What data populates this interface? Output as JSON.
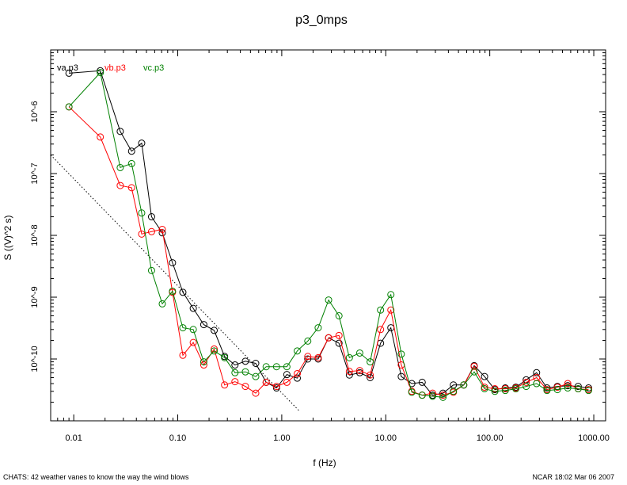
{
  "chart_data": {
    "type": "line",
    "title": "p3_0mps",
    "xlabel": "f (Hz)",
    "ylabel": "S ((V)^2 s)",
    "xscale": "log",
    "yscale": "log",
    "xlim": [
      0.006,
      1300
    ],
    "ylim": [
      1e-11,
      1e-05
    ],
    "x_tick_labels": [
      "0.01",
      "0.10",
      "1.00",
      "10.00",
      "100.00",
      "1000.00"
    ],
    "x_tick_values": [
      0.01,
      0.1,
      1,
      10,
      100,
      1000
    ],
    "y_tick_labels": [
      "10^-10",
      "10^-9",
      "10^-8",
      "10^-7",
      "10^-6"
    ],
    "y_tick_values": [
      1e-10,
      1e-09,
      1e-08,
      1e-07,
      1e-06
    ],
    "legend_position": "top-left",
    "x": [
      0.009,
      0.018,
      0.028,
      0.036,
      0.045,
      0.056,
      0.071,
      0.089,
      0.112,
      0.141,
      0.178,
      0.224,
      0.282,
      0.355,
      0.447,
      0.562,
      0.708,
      0.891,
      1.12,
      1.41,
      1.78,
      2.24,
      2.82,
      3.55,
      4.47,
      5.62,
      7.08,
      8.91,
      11.2,
      14.1,
      17.8,
      22.4,
      28.2,
      35.5,
      44.7,
      56.2,
      70.8,
      89.1,
      112,
      141,
      178,
      224,
      282,
      355,
      447,
      562,
      708,
      891
    ],
    "series": [
      {
        "name": "va.p3",
        "color": "#000000",
        "values": [
          4.2e-06,
          4.6e-06,
          4.8e-07,
          2.3e-07,
          3.1e-07,
          2e-08,
          1.1e-08,
          3.6e-09,
          1.2e-09,
          6.6e-10,
          3.6e-10,
          2.9e-10,
          1.1e-10,
          8e-11,
          9.2e-11,
          8.5e-11,
          4.2e-11,
          3.4e-11,
          5.6e-11,
          4.9e-11,
          1e-10,
          1e-10,
          2.2e-10,
          1.8e-10,
          5.5e-11,
          6e-11,
          5e-11,
          1.8e-10,
          3.2e-10,
          5.2e-11,
          4e-11,
          4.2e-11,
          2.6e-11,
          2.8e-11,
          3.8e-11,
          3.8e-11,
          7.8e-11,
          5.2e-11,
          3.2e-11,
          3.4e-11,
          3.5e-11,
          4.6e-11,
          6e-11,
          3.4e-11,
          3.6e-11,
          3.7e-11,
          3.6e-11,
          3.4e-11
        ]
      },
      {
        "name": "vb.p3",
        "color": "#ff0000",
        "values": [
          1.2e-06,
          3.9e-07,
          6.4e-08,
          5.9e-08,
          1.05e-08,
          1.15e-08,
          1.25e-08,
          1.2e-09,
          1.15e-10,
          1.85e-10,
          8e-11,
          1.45e-10,
          3.8e-11,
          4.3e-11,
          3.6e-11,
          2.8e-11,
          4.2e-11,
          3.6e-11,
          4.2e-11,
          5.8e-11,
          1.1e-10,
          1.05e-10,
          2.2e-10,
          2.4e-10,
          6.3e-11,
          6.5e-11,
          5.5e-11,
          3e-10,
          6.2e-10,
          8e-11,
          3e-11,
          2.6e-11,
          2.8e-11,
          2.6e-11,
          2.9e-11,
          3.8e-11,
          7.6e-11,
          3.5e-11,
          3.3e-11,
          3.3e-11,
          3.4e-11,
          4.2e-11,
          5e-11,
          3.2e-11,
          3.5e-11,
          4e-11,
          3.3e-11,
          3.2e-11
        ]
      },
      {
        "name": "vc.p3",
        "color": "#008000",
        "values": [
          1.2e-06,
          4.3e-06,
          1.25e-07,
          1.45e-07,
          2.3e-08,
          2.7e-09,
          7.8e-10,
          1.25e-09,
          3.2e-10,
          3e-10,
          9e-11,
          1.35e-10,
          1.05e-10,
          6e-11,
          6.2e-11,
          5.2e-11,
          7.5e-11,
          7.5e-11,
          7.5e-11,
          1.35e-10,
          1.95e-10,
          3.2e-10,
          9e-10,
          5e-10,
          1.05e-10,
          1.25e-10,
          9e-11,
          6.2e-10,
          1.1e-09,
          1.2e-10,
          2.9e-11,
          2.6e-11,
          2.5e-11,
          2.4e-11,
          3e-11,
          3.8e-11,
          6.2e-11,
          3.3e-11,
          3e-11,
          3.1e-11,
          3.3e-11,
          3.6e-11,
          4e-11,
          3.1e-11,
          3.2e-11,
          3.4e-11,
          3.3e-11,
          3.1e-11
        ]
      }
    ],
    "reference_line": {
      "style": "dotted",
      "x": [
        0.006,
        1.5
      ],
      "y": [
        2e-07,
        1.4e-11
      ]
    }
  },
  "footer": {
    "left": "CHATS: 42 weather vanes to know the way the wind blows",
    "right": "NCAR 18:02 Mar 06 2007"
  }
}
